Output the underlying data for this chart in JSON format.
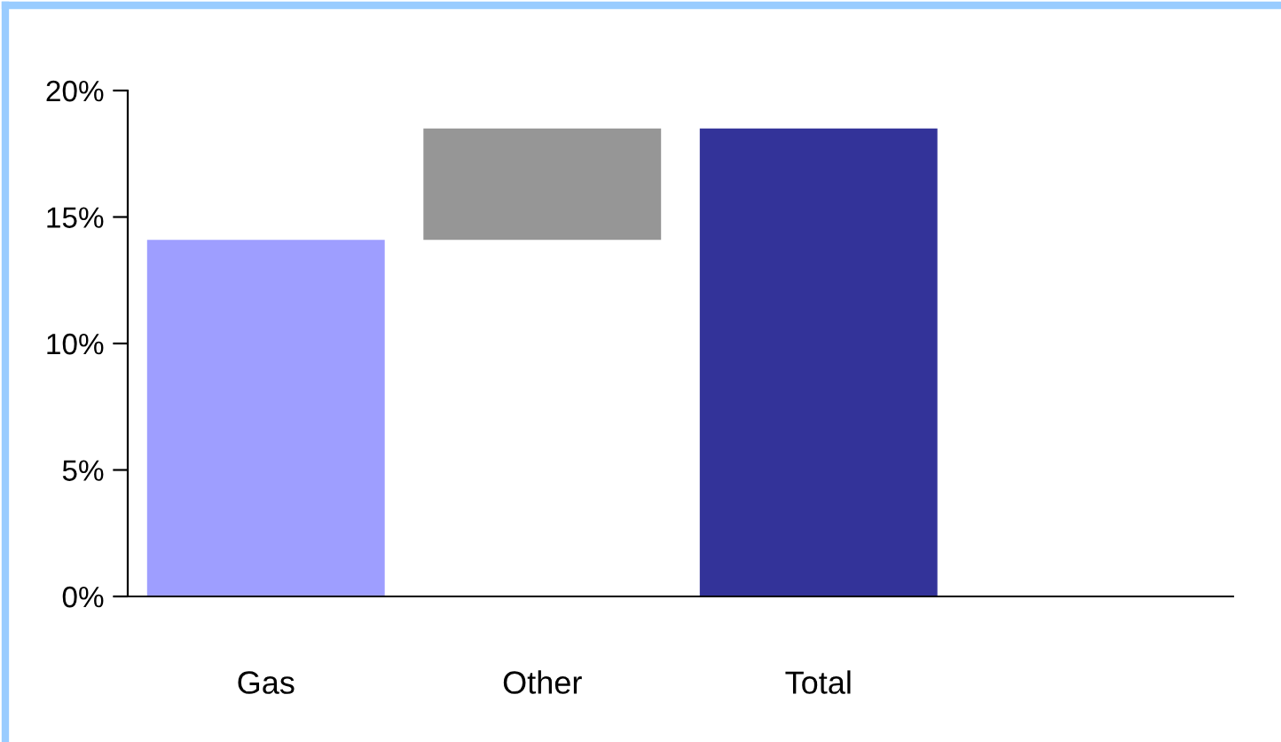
{
  "chart_data": {
    "type": "bar",
    "categories": [
      "Gas",
      "Other",
      "Total",
      null
    ],
    "values": [
      14.1,
      4.4,
      18.5,
      null
    ],
    "base": [
      0,
      14.1,
      0,
      null
    ],
    "colors": [
      "#9e9eff",
      "#969696",
      "#333399",
      "#ffffff"
    ],
    "ylim": [
      0,
      20
    ],
    "yticks": [
      {
        "value": 0,
        "label": "0%"
      },
      {
        "value": 5,
        "label": "5%"
      },
      {
        "value": 10,
        "label": "10%"
      },
      {
        "value": 15,
        "label": "15%"
      },
      {
        "value": 20,
        "label": "20%"
      }
    ],
    "grid": false,
    "legend": false
  }
}
